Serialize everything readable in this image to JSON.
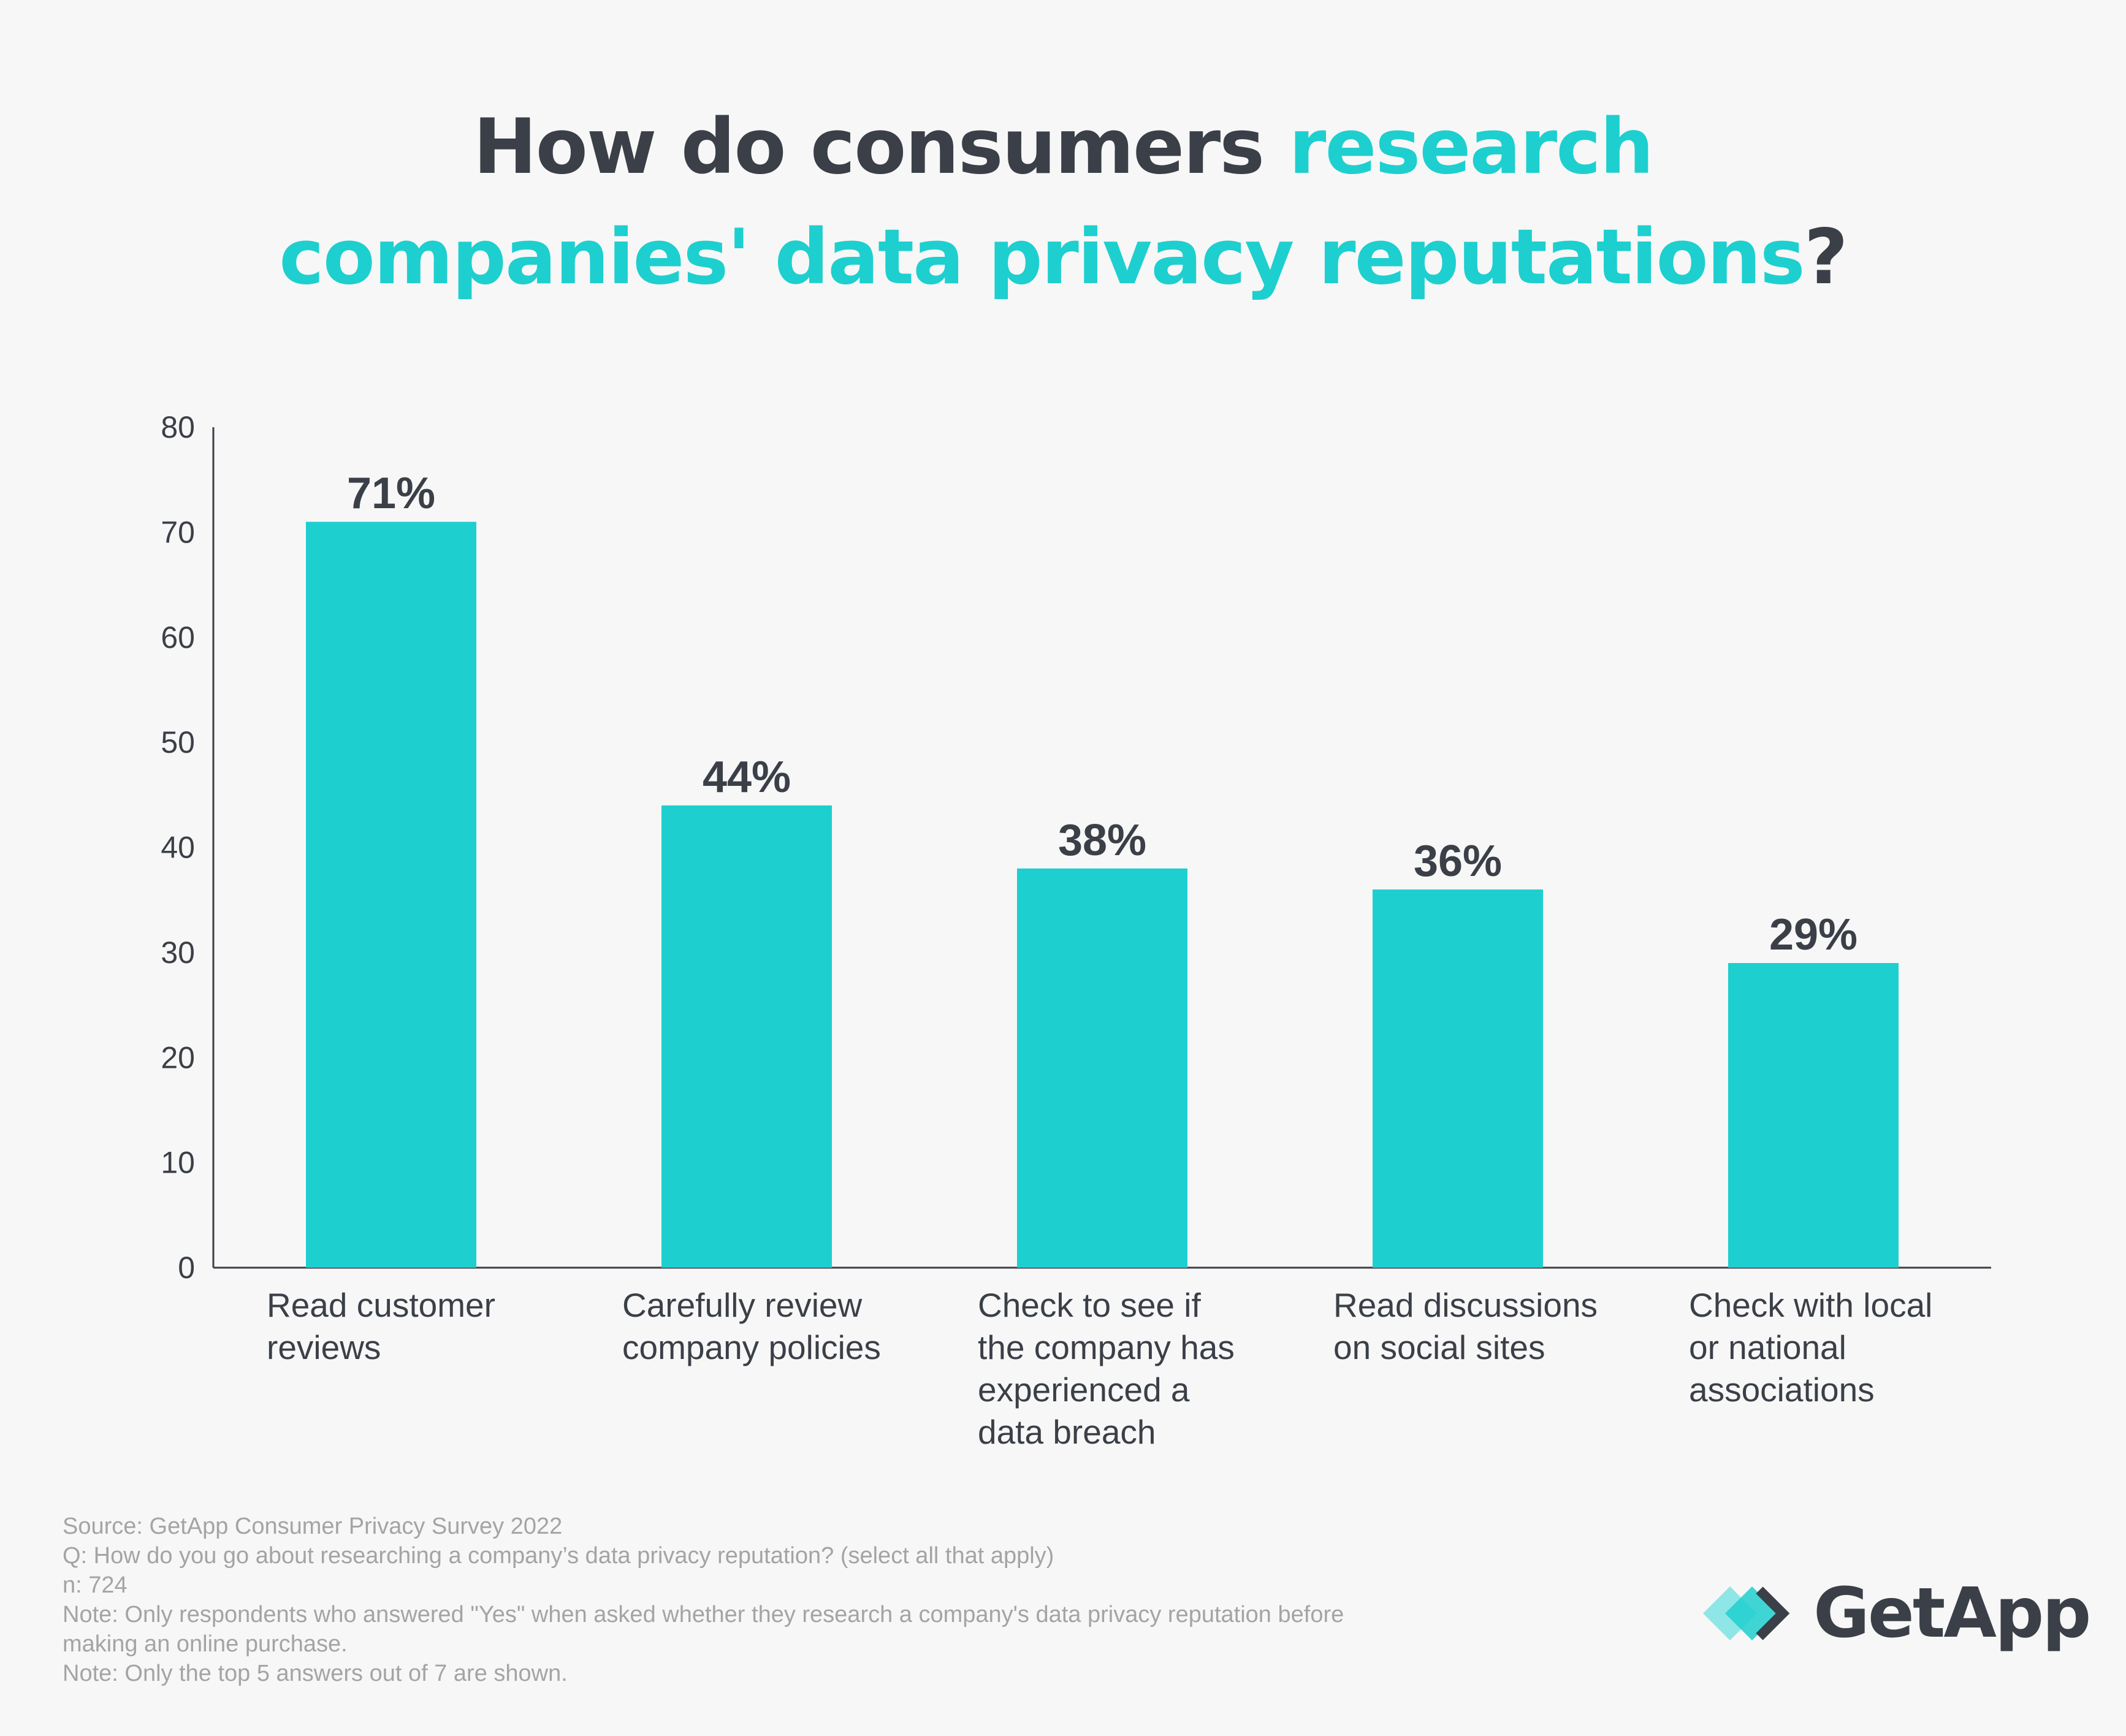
{
  "header": {
    "title_part1": "How do consumers ",
    "title_part2": "research",
    "title_part3": "companies' data privacy reputations",
    "title_part4": "?"
  },
  "colors": {
    "accent": "#1ecfcf",
    "text_dark": "#3b3f47",
    "footnote": "#a4a4a4",
    "background": "#f7f7f7"
  },
  "chart_data": {
    "type": "bar",
    "title": "How do consumers research companies' data privacy reputations?",
    "xlabel": "",
    "ylabel": "",
    "ylim": [
      0,
      80
    ],
    "yticks": [
      "0",
      "10",
      "20",
      "30",
      "40",
      "50",
      "60",
      "70",
      "80"
    ],
    "categories": [
      [
        "Read customer",
        "reviews"
      ],
      [
        "Carefully review",
        "company policies"
      ],
      [
        "Check to see if",
        "the company has",
        "experienced a",
        "data breach"
      ],
      [
        "Read discussions",
        "on social sites"
      ],
      [
        "Check with local",
        "or national",
        "associations"
      ]
    ],
    "values": [
      71,
      44,
      38,
      36,
      29
    ],
    "data_labels": [
      "71%",
      "44%",
      "38%",
      "36%",
      "29%"
    ],
    "grid": false,
    "legend": "none"
  },
  "footnotes": {
    "source": "Source: GetApp Consumer Privacy Survey 2022",
    "question": "Q: How do you go about researching a company’s data privacy reputation? (select all that apply)",
    "n": "n: 724",
    "note1_line1": "Note: Only respondents who answered \"Yes\" when asked whether they research a company's data privacy reputation before",
    "note1_line2": "making an online purchase.",
    "note2": "Note: Only the top 5 answers out of 7 are shown."
  },
  "brand": {
    "logo_text": "GetApp"
  }
}
